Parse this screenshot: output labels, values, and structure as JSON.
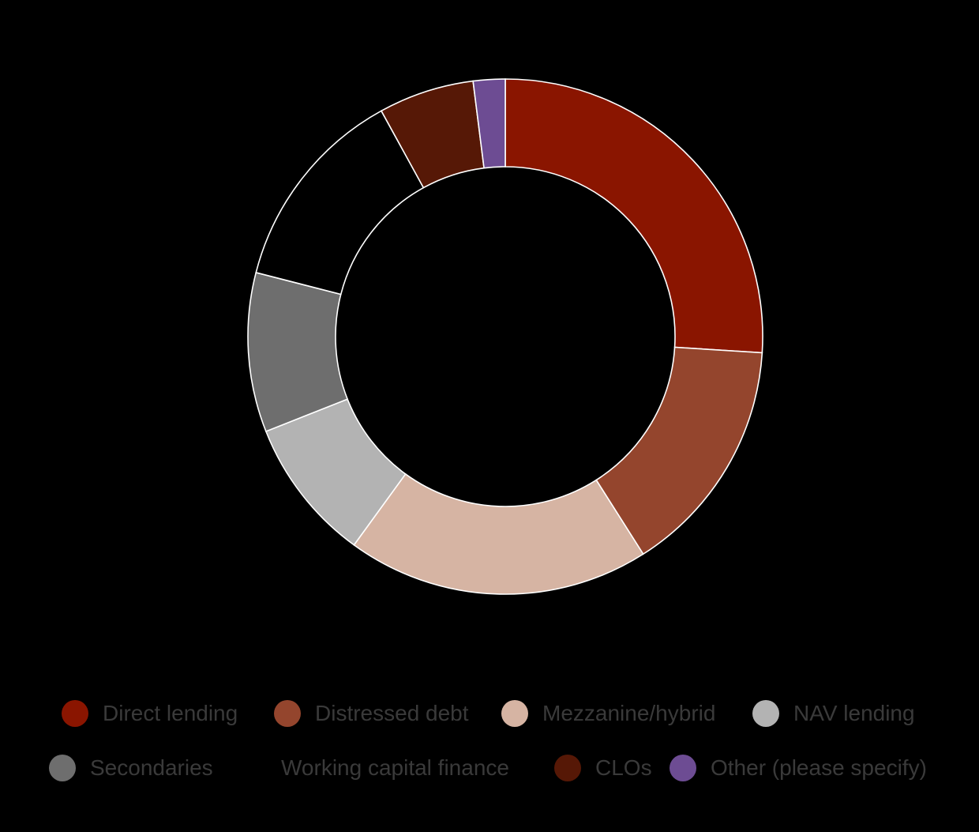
{
  "chart_data": {
    "type": "pie",
    "variant": "donut",
    "categories": [
      "Direct lending",
      "Distressed debt",
      "Mezzanine/hybrid",
      "NAV lending",
      "Secondaries",
      "Working capital finance",
      "CLOs",
      "Other (please specify)"
    ],
    "values": [
      26,
      15,
      19,
      9,
      10,
      13,
      6,
      2
    ],
    "colors": [
      "#8a1500",
      "#94452d",
      "#d6b4a3",
      "#b3b3b3",
      "#6e6e6e",
      "#000000",
      "#561806",
      "#6d4c93"
    ],
    "start_angle_deg": 0,
    "direction": "clockwise",
    "legend_position": "bottom",
    "background": "#000000",
    "slice_border_color": "#ffffff"
  }
}
